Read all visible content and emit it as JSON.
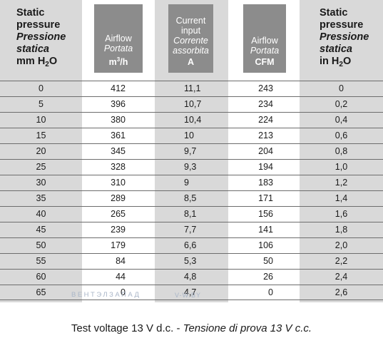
{
  "headers": {
    "static_pressure_left": {
      "line1": "Static",
      "line2": "pressure",
      "line3": "Pressione",
      "line4": "statica",
      "unit": "mm H",
      "unit_sub": "2",
      "unit_tail": "O"
    },
    "airflow_m3h": {
      "line1": "Airflow",
      "line2": "Portata",
      "unit": "m",
      "unit_sup": "3",
      "unit_tail": "/h"
    },
    "current": {
      "line1": "Current",
      "line2": "input",
      "line3": "Corrente",
      "line4": "assorbita",
      "unit": "A"
    },
    "airflow_cfm": {
      "line1": "Airflow",
      "line2": "Portata",
      "unit": "CFM"
    },
    "static_pressure_right": {
      "line1": "Static",
      "line2": "pressure",
      "line3": "Pressione",
      "line4": "statica",
      "unit": "in H",
      "unit_sub": "2",
      "unit_tail": "O"
    }
  },
  "rows": [
    [
      "0",
      "412",
      "11,1",
      "243",
      "0"
    ],
    [
      "5",
      "396",
      "10,7",
      "234",
      "0,2"
    ],
    [
      "10",
      "380",
      "10,4",
      "224",
      "0,4"
    ],
    [
      "15",
      "361",
      "10",
      "213",
      "0,6"
    ],
    [
      "20",
      "345",
      "9,7",
      "204",
      "0,8"
    ],
    [
      "25",
      "328",
      "9,3",
      "194",
      "1,0"
    ],
    [
      "30",
      "310",
      "9",
      "183",
      "1,2"
    ],
    [
      "35",
      "289",
      "8,5",
      "171",
      "1,4"
    ],
    [
      "40",
      "265",
      "8,1",
      "156",
      "1,6"
    ],
    [
      "45",
      "239",
      "7,7",
      "141",
      "1,8"
    ],
    [
      "50",
      "179",
      "6,6",
      "106",
      "2,0"
    ],
    [
      "55",
      "84",
      "5,3",
      "50",
      "2,2"
    ],
    [
      "60",
      "44",
      "4,8",
      "26",
      "2,4"
    ],
    [
      "65",
      "0",
      "4,7",
      "0",
      "2,6"
    ]
  ],
  "watermark": {
    "text": "ВЕНТЭЛЗАПАД",
    "domain": "V-W.BY"
  },
  "caption": {
    "normal": "Test voltage 13 V d.c. - ",
    "italic": "Tensione di prova 13 V c.c."
  }
}
